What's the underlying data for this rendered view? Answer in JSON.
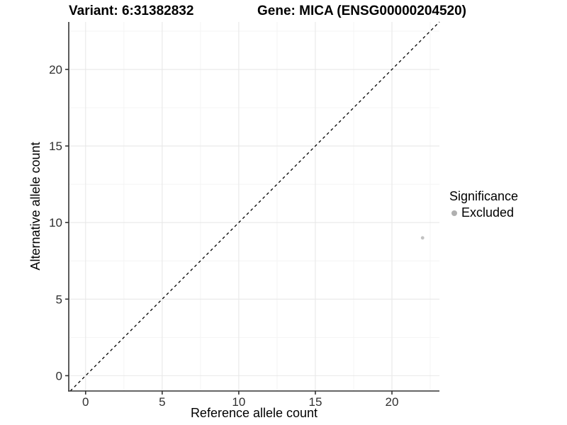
{
  "title": {
    "variant": "Variant: 6:31382832",
    "gene": "Gene: MICA (ENSG00000204520)"
  },
  "legend": {
    "title": "Significance",
    "items": [
      {
        "label": "Excluded",
        "color": "#b0b0b0"
      }
    ]
  },
  "chart_data": {
    "type": "scatter",
    "title": "Variant: 6:31382832  |  Gene: MICA (ENSG00000204520)",
    "xlabel": "Reference allele count",
    "ylabel": "Alternative allele count",
    "xlim": [
      -1.1,
      23.1
    ],
    "ylim": [
      -1.0,
      23.1
    ],
    "x_ticks": [
      0,
      5,
      10,
      15,
      20
    ],
    "y_ticks": [
      0,
      5,
      10,
      15,
      20
    ],
    "x_minor_ticks": [
      2.5,
      7.5,
      12.5,
      17.5,
      22.5
    ],
    "y_minor_ticks": [
      2.5,
      7.5,
      12.5,
      17.5,
      22.5
    ],
    "grid": "major+minor",
    "legend_position": "right",
    "reference_line": {
      "type": "identity y=x",
      "style": "dashed",
      "color": "#000000"
    },
    "series": [
      {
        "name": "Excluded",
        "color": "#c2c2c2",
        "points": [
          {
            "x": 22,
            "y": 9
          }
        ]
      }
    ],
    "colors": {
      "axis_line": "#333333",
      "tick_label": "#303030",
      "grid_major": "#e8e8e8",
      "grid_minor": "#f4f4f4",
      "point": "#c2c2c2",
      "legend_point": "#b0b0b0"
    }
  }
}
